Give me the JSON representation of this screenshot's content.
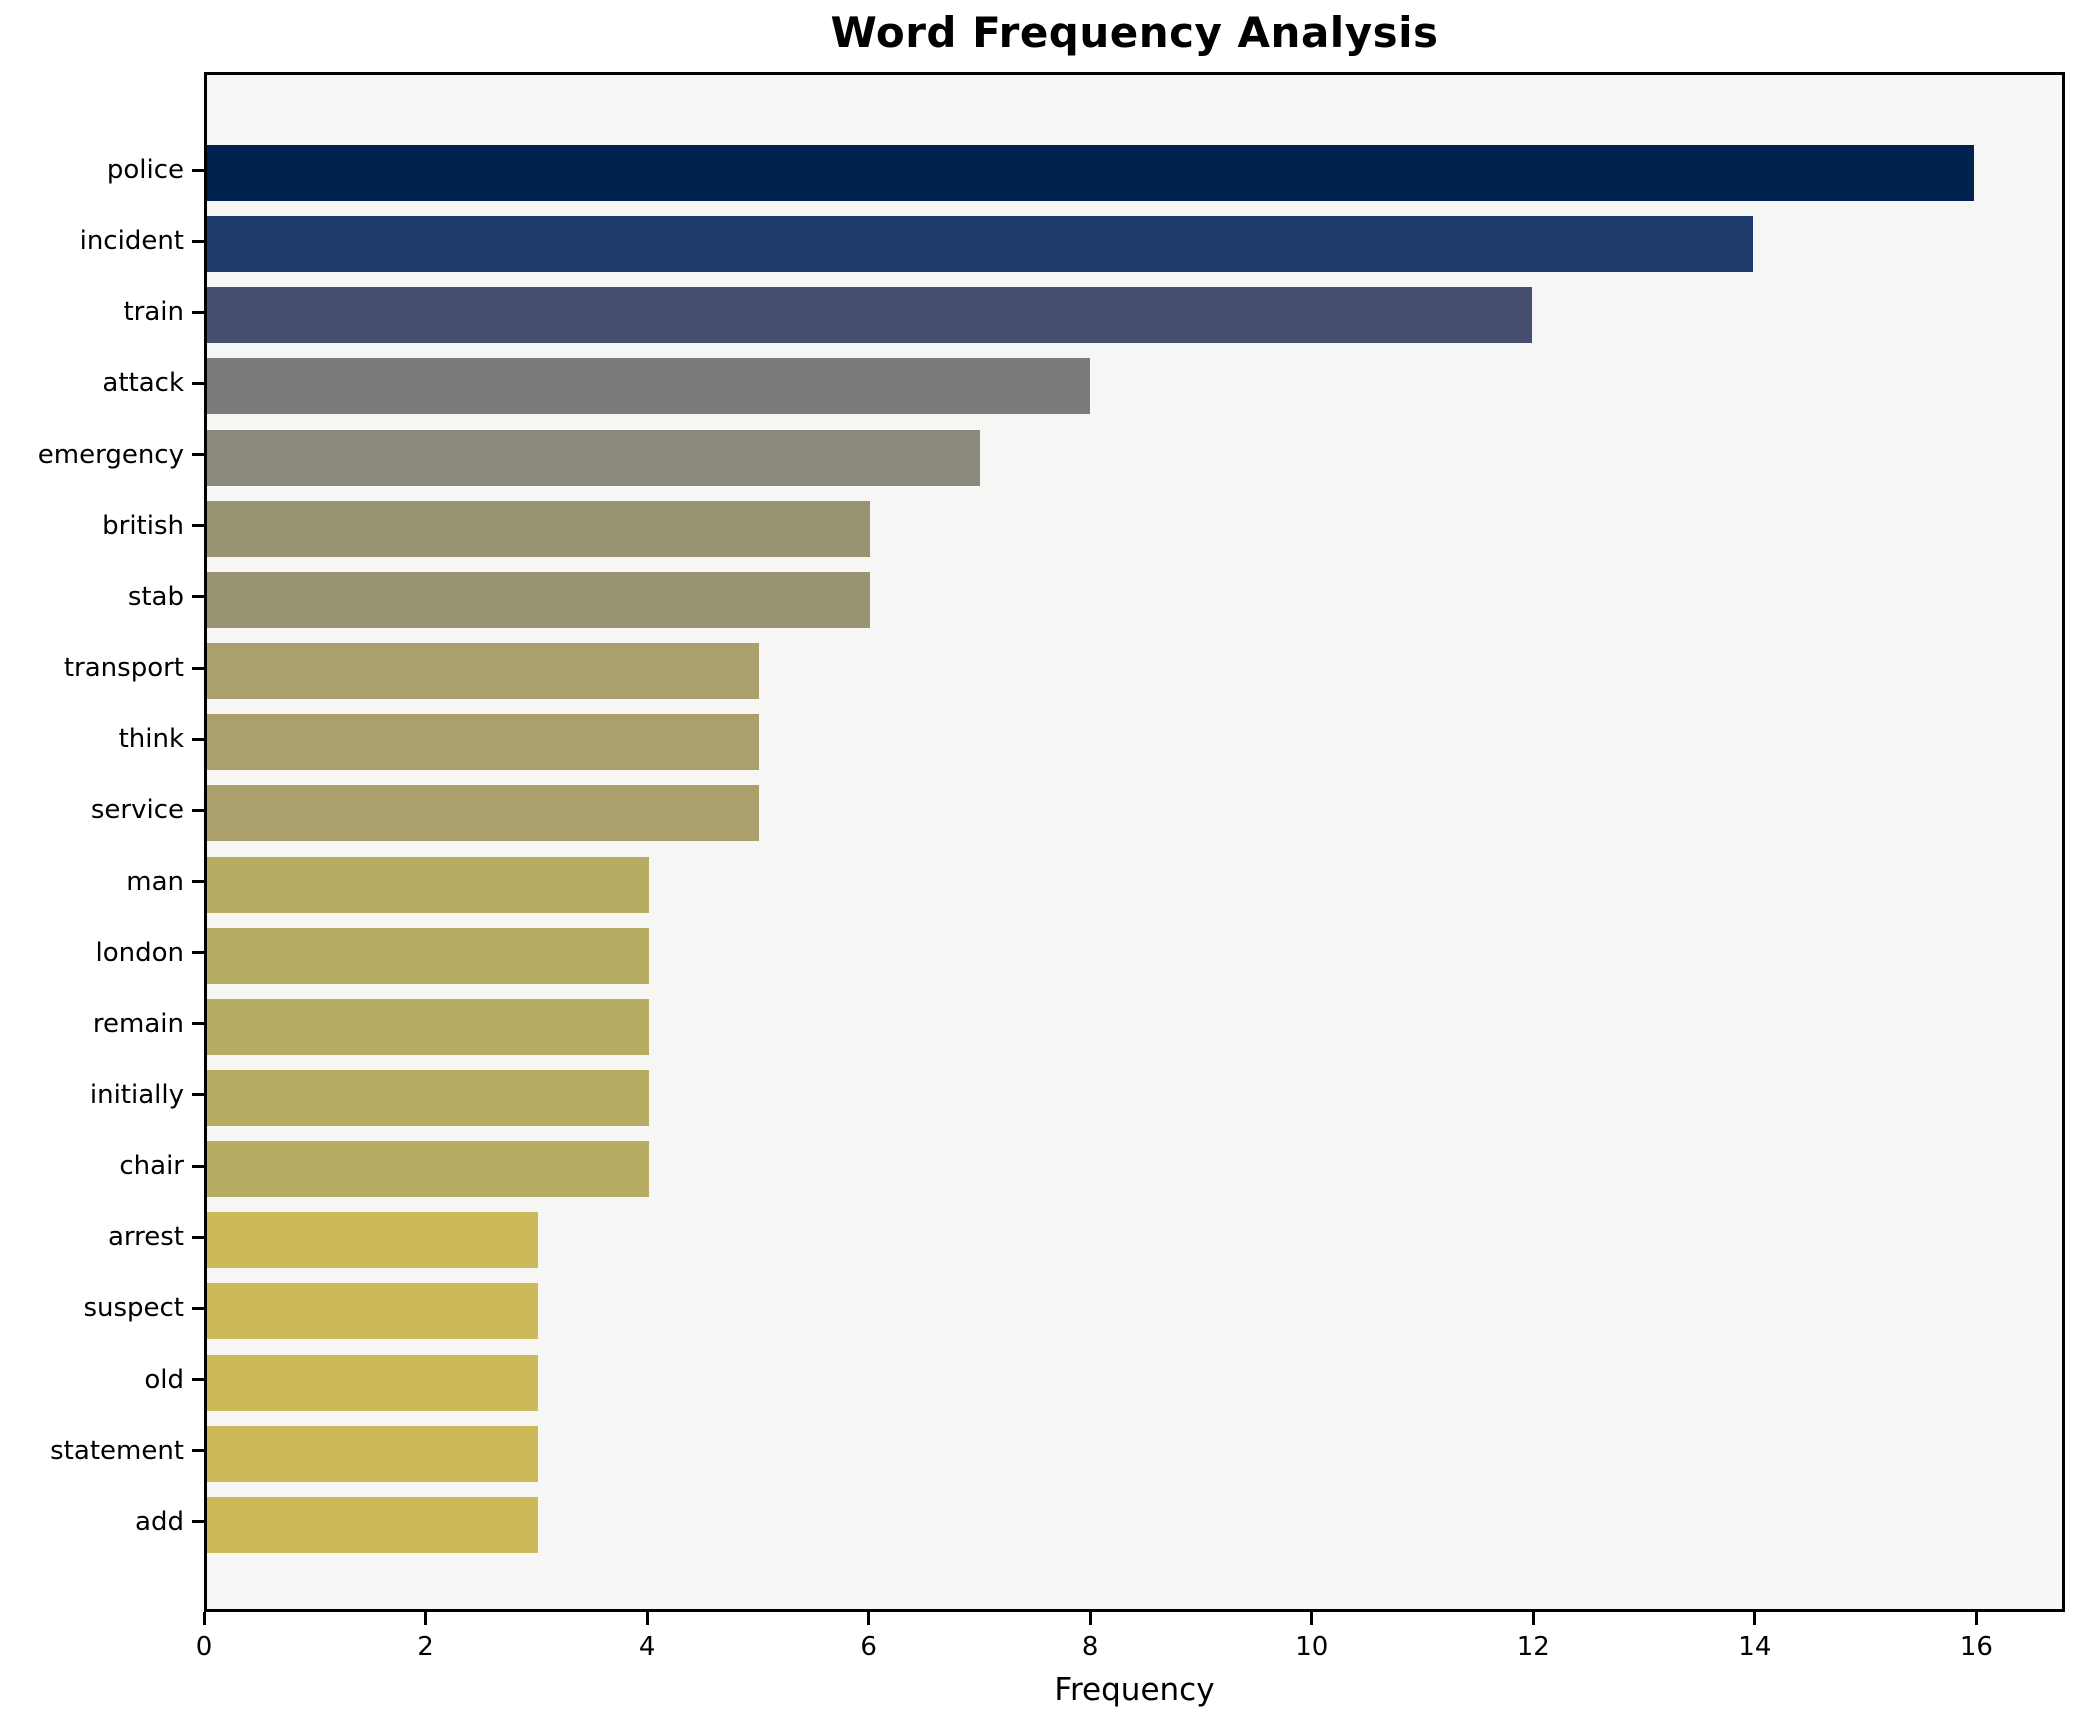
{
  "chart_data": {
    "type": "bar",
    "orientation": "horizontal",
    "title": "Word Frequency Analysis",
    "xlabel": "Frequency",
    "ylabel": "",
    "grid": false,
    "legend": null,
    "xlim": [
      0,
      16.8
    ],
    "x_ticks": [
      0,
      2,
      4,
      6,
      8,
      10,
      12,
      14,
      16
    ],
    "categories": [
      "police",
      "incident",
      "train",
      "attack",
      "emergency",
      "british",
      "stab",
      "transport",
      "think",
      "service",
      "man",
      "london",
      "remain",
      "initially",
      "chair",
      "arrest",
      "suspect",
      "old",
      "statement",
      "add"
    ],
    "values": [
      16,
      14,
      12,
      8,
      7,
      6,
      6,
      5,
      5,
      5,
      4,
      4,
      4,
      4,
      4,
      3,
      3,
      3,
      3,
      3
    ],
    "bar_colors": [
      "#00224e",
      "#1d3a6d",
      "#46506e",
      "#7a7a7a",
      "#8a897b",
      "#98946f",
      "#98946f",
      "#a9a06c",
      "#a9a06c",
      "#a9a06c",
      "#b6ac64",
      "#b6ac64",
      "#b6ac64",
      "#b6ac64",
      "#b6ac64",
      "#ccba5a",
      "#ccba5a",
      "#ccba5a",
      "#ccba5a",
      "#ccba5a"
    ],
    "colors": {
      "plot_background": "#f6f6f4",
      "figure_background": "#ffffff",
      "spine": "#000000",
      "text": "#000000"
    }
  }
}
